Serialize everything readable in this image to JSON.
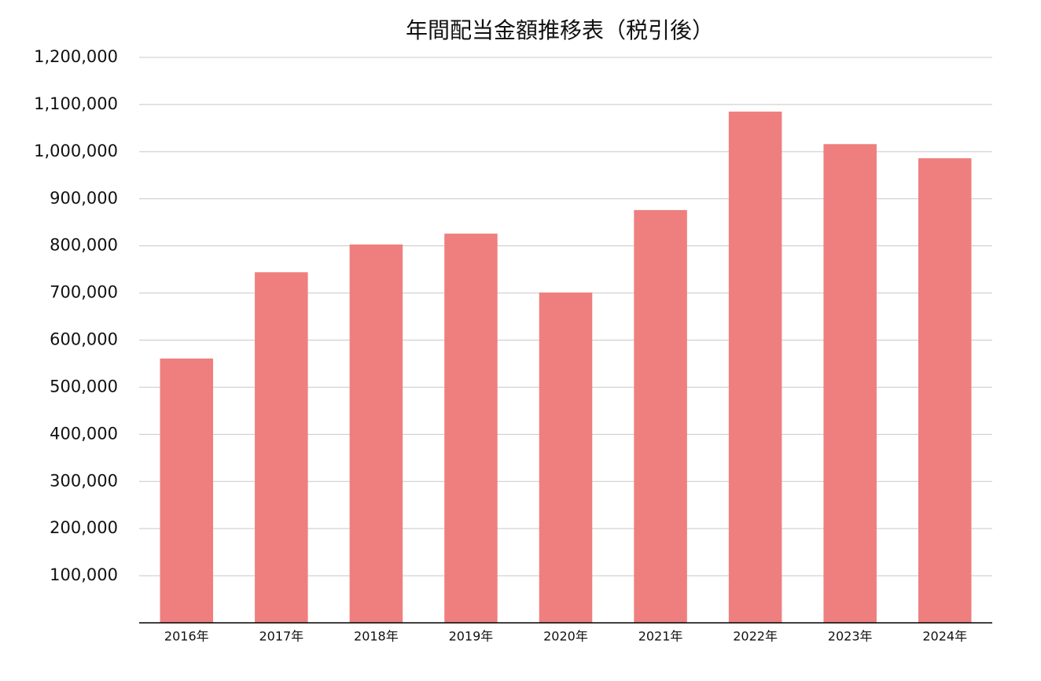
{
  "chart_data": {
    "type": "bar",
    "title": "年間配当金額推移表（税引後）",
    "categories": [
      "2016年",
      "2017年",
      "2018年",
      "2019年",
      "2020年",
      "2021年",
      "2022年",
      "2023年",
      "2024年"
    ],
    "values": [
      561000,
      744000,
      803000,
      826000,
      701000,
      876000,
      1085000,
      1016000,
      986000
    ],
    "color": "#ee7f7e",
    "ylim": [
      0,
      1200000
    ],
    "yticks": [
      {
        "value": 100000,
        "label": "100,000"
      },
      {
        "value": 200000,
        "label": "200,000"
      },
      {
        "value": 300000,
        "label": "300,000"
      },
      {
        "value": 400000,
        "label": "400,000"
      },
      {
        "value": 500000,
        "label": "500,000"
      },
      {
        "value": 600000,
        "label": "600,000"
      },
      {
        "value": 700000,
        "label": "700,000"
      },
      {
        "value": 800000,
        "label": "800,000"
      },
      {
        "value": 900000,
        "label": "900,000"
      },
      {
        "value": 1000000,
        "label": "1,000,000"
      },
      {
        "value": 1100000,
        "label": "1,100,000"
      },
      {
        "value": 1200000,
        "label": "1,200,000"
      }
    ],
    "grid": true
  }
}
